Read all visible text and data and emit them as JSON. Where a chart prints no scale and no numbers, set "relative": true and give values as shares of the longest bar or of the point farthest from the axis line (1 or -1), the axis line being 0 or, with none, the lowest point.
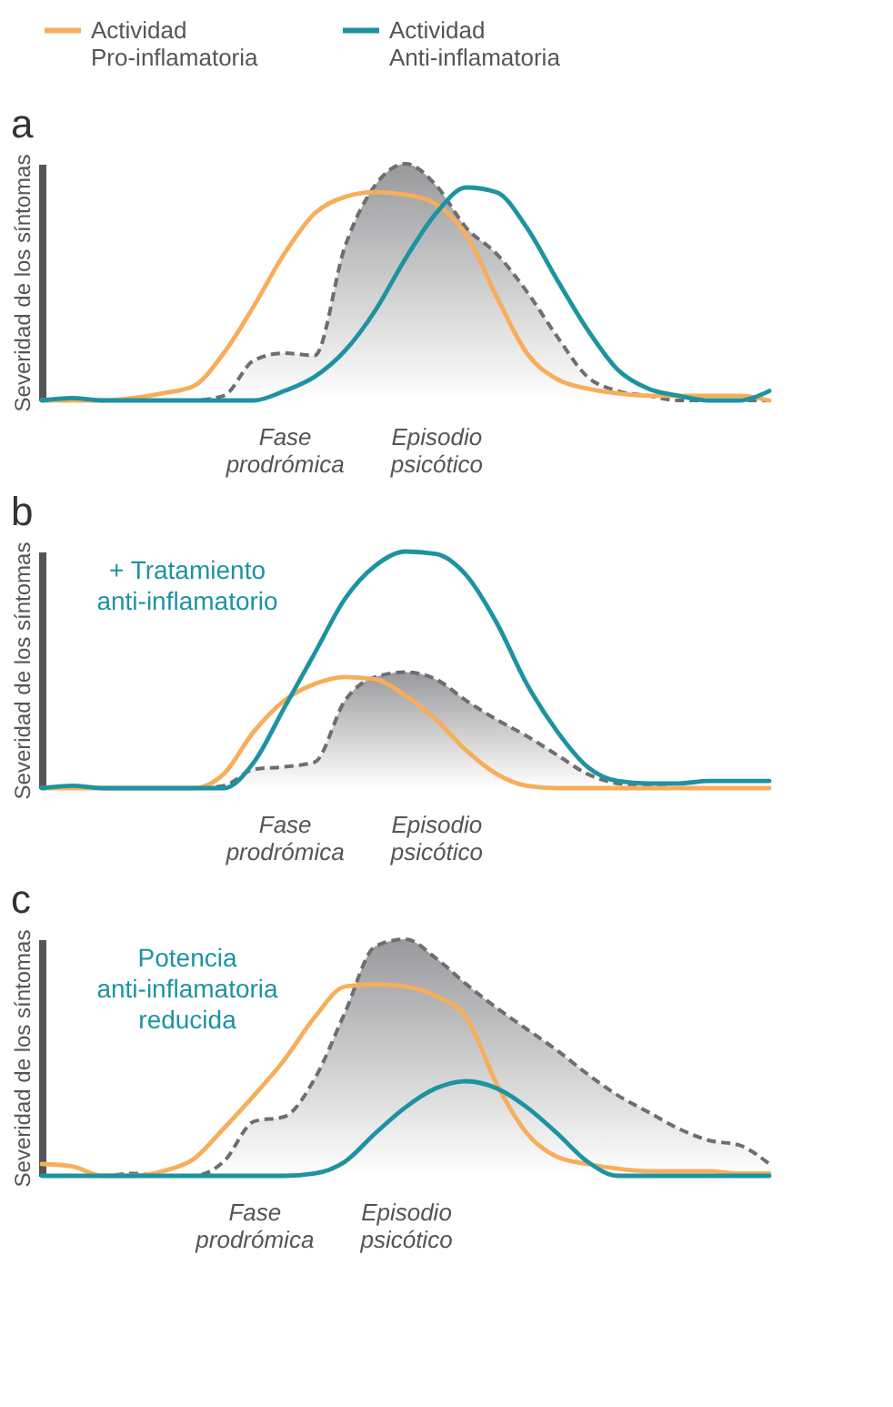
{
  "chart_data": [
    {
      "type": "line",
      "title": "a",
      "ylabel": "Severidad de los síntomas",
      "relative": true,
      "legend": "top",
      "categories": [
        null,
        null,
        null,
        null,
        null,
        null,
        null,
        null,
        "Fase prodrómica",
        null,
        null,
        null,
        null,
        "Episodio psicótico",
        null,
        null,
        null,
        null,
        null,
        null,
        null,
        null,
        null,
        null,
        null
      ],
      "series": [
        {
          "type": "area",
          "color": "#6d6e71",
          "line_style": "dashed",
          "values": [
            0,
            0,
            0,
            0,
            0,
            0,
            0.02,
            0.17,
            0.2,
            0.19,
            0.65,
            0.91,
            1.0,
            0.91,
            0.73,
            0.62,
            0.46,
            0.27,
            0.1,
            0.04,
            0.02,
            0,
            0,
            0,
            0
          ]
        },
        {
          "name": "Actividad Pro-inflamatoria",
          "color": "#f7ae5a",
          "values": [
            0,
            0,
            0,
            0.01,
            0.03,
            0.06,
            0.2,
            0.4,
            0.62,
            0.79,
            0.86,
            0.88,
            0.87,
            0.83,
            0.7,
            0.44,
            0.2,
            0.09,
            0.05,
            0.03,
            0.02,
            0.02,
            0.02,
            0.02,
            0
          ]
        },
        {
          "name": "Actividad Anti-inflamatoria",
          "color": "#1d93a1",
          "values": [
            0,
            0.01,
            0,
            0,
            0,
            0,
            0,
            0,
            0.04,
            0.1,
            0.21,
            0.38,
            0.6,
            0.79,
            0.9,
            0.88,
            0.73,
            0.51,
            0.3,
            0.13,
            0.05,
            0.02,
            0,
            0,
            0.04
          ]
        }
      ]
    },
    {
      "type": "line",
      "title": "b",
      "ylabel": "Severidad de los síntomas",
      "relative": true,
      "categories": [
        null,
        null,
        null,
        null,
        null,
        null,
        null,
        null,
        "Fase prodrómica",
        null,
        null,
        null,
        null,
        "Episodio psicótico",
        null,
        null,
        null,
        null,
        null,
        null,
        null,
        null,
        null,
        null,
        null
      ],
      "annotations": [
        "+ Tratamiento anti-inflamatorio"
      ],
      "series": [
        {
          "type": "area",
          "color": "#6d6e71",
          "line_style": "dashed",
          "values": [
            0,
            0,
            0,
            0,
            0,
            0,
            0.01,
            0.08,
            0.09,
            0.11,
            0.37,
            0.47,
            0.49,
            0.46,
            0.37,
            0.29,
            0.22,
            0.14,
            0.06,
            0.02,
            0.01,
            0,
            0,
            0,
            0
          ]
        },
        {
          "color": "#f7ae5a",
          "values": [
            0,
            0,
            0,
            0,
            0,
            0,
            0.06,
            0.24,
            0.37,
            0.44,
            0.47,
            0.46,
            0.39,
            0.29,
            0.16,
            0.06,
            0.01,
            0,
            0,
            0,
            0,
            0,
            0,
            0,
            0
          ]
        },
        {
          "color": "#1d93a1",
          "values": [
            0,
            0.01,
            0,
            0,
            0,
            0,
            0,
            0.11,
            0.34,
            0.57,
            0.8,
            0.94,
            1.0,
            0.99,
            0.9,
            0.7,
            0.44,
            0.24,
            0.09,
            0.03,
            0.02,
            0.02,
            0.03,
            0.03,
            0.03
          ]
        }
      ]
    },
    {
      "type": "line",
      "title": "c",
      "ylabel": "Severidad de los síntomas",
      "relative": true,
      "categories": [
        null,
        null,
        null,
        null,
        null,
        null,
        null,
        "Fase prodrómica",
        null,
        null,
        null,
        null,
        "Episodio psicótico",
        null,
        null,
        null,
        null,
        null,
        null,
        null,
        null,
        null,
        null,
        null,
        null
      ],
      "annotations": [
        "Potencia anti-inflamatoria reducida"
      ],
      "series": [
        {
          "type": "area",
          "color": "#6d6e71",
          "line_style": "dashed",
          "values": [
            0,
            0,
            0,
            0.01,
            0,
            0,
            0.06,
            0.23,
            0.25,
            0.41,
            0.69,
            0.97,
            1.0,
            0.92,
            0.81,
            0.71,
            0.62,
            0.53,
            0.43,
            0.34,
            0.27,
            0.2,
            0.15,
            0.13,
            0.05
          ]
        },
        {
          "color": "#f7ae5a",
          "values": [
            0.05,
            0.04,
            0,
            0,
            0.02,
            0.07,
            0.2,
            0.34,
            0.49,
            0.67,
            0.8,
            0.81,
            0.8,
            0.76,
            0.67,
            0.39,
            0.18,
            0.08,
            0.05,
            0.03,
            0.02,
            0.02,
            0.02,
            0.01,
            0.01
          ]
        },
        {
          "color": "#1d93a1",
          "values": [
            0,
            0,
            0,
            0,
            0,
            0,
            0,
            0,
            0,
            0.01,
            0.06,
            0.18,
            0.29,
            0.37,
            0.4,
            0.37,
            0.29,
            0.18,
            0.06,
            0,
            0,
            0,
            0,
            0,
            0
          ]
        }
      ]
    }
  ]
}
